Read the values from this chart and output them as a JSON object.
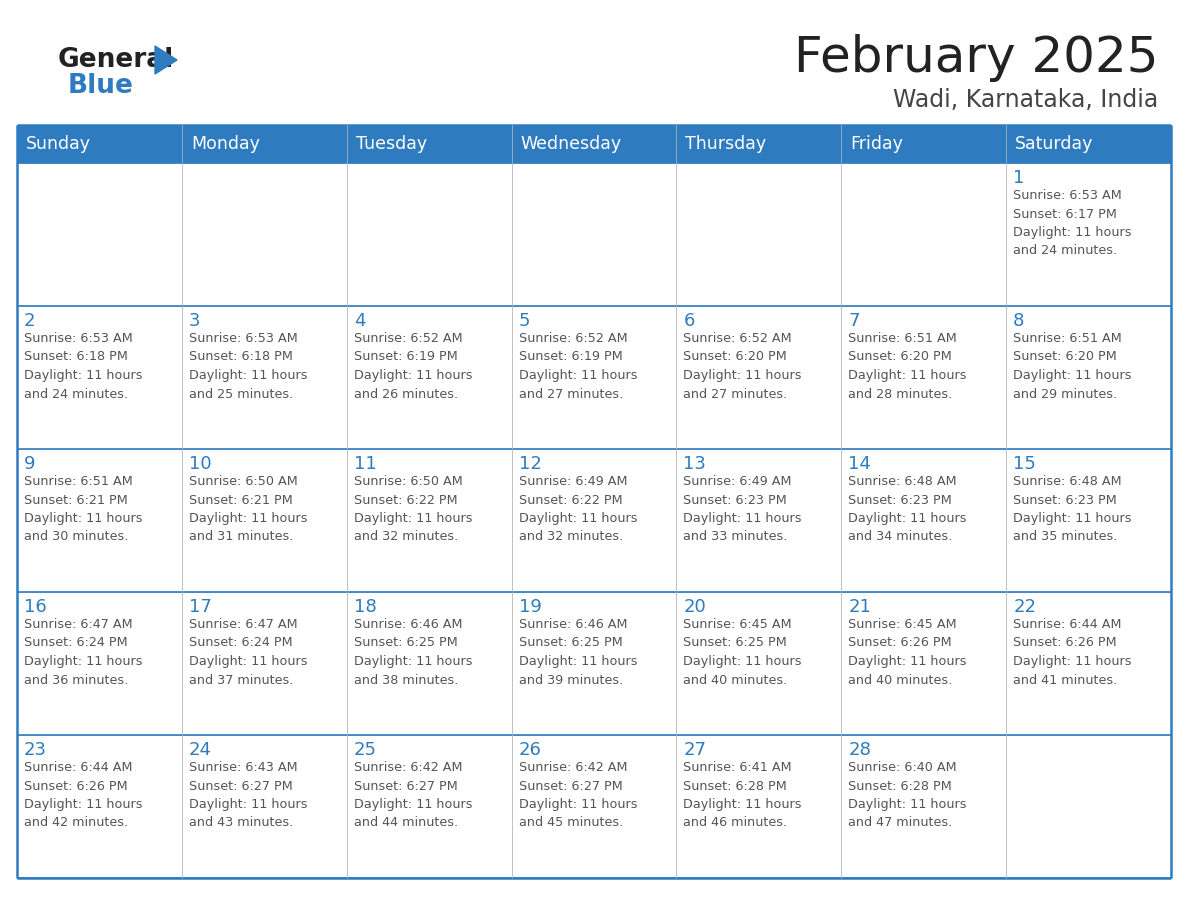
{
  "title": "February 2025",
  "subtitle": "Wadi, Karnataka, India",
  "days_of_week": [
    "Sunday",
    "Monday",
    "Tuesday",
    "Wednesday",
    "Thursday",
    "Friday",
    "Saturday"
  ],
  "header_bg": "#2E7BBF",
  "header_text_color": "#FFFFFF",
  "border_color": "#2E7BBF",
  "day_number_color": "#2E7BBF",
  "text_color": "#555555",
  "title_color": "#222222",
  "subtitle_color": "#444444",
  "logo_general_color": "#222222",
  "logo_blue_color": "#2E7BBF",
  "calendar": [
    [
      null,
      null,
      null,
      null,
      null,
      null,
      {
        "day": 1,
        "sunrise": "6:53 AM",
        "sunset": "6:17 PM",
        "daylight_line1": "Daylight: 11 hours",
        "daylight_line2": "and 24 minutes."
      }
    ],
    [
      {
        "day": 2,
        "sunrise": "6:53 AM",
        "sunset": "6:18 PM",
        "daylight_line1": "Daylight: 11 hours",
        "daylight_line2": "and 24 minutes."
      },
      {
        "day": 3,
        "sunrise": "6:53 AM",
        "sunset": "6:18 PM",
        "daylight_line1": "Daylight: 11 hours",
        "daylight_line2": "and 25 minutes."
      },
      {
        "day": 4,
        "sunrise": "6:52 AM",
        "sunset": "6:19 PM",
        "daylight_line1": "Daylight: 11 hours",
        "daylight_line2": "and 26 minutes."
      },
      {
        "day": 5,
        "sunrise": "6:52 AM",
        "sunset": "6:19 PM",
        "daylight_line1": "Daylight: 11 hours",
        "daylight_line2": "and 27 minutes."
      },
      {
        "day": 6,
        "sunrise": "6:52 AM",
        "sunset": "6:20 PM",
        "daylight_line1": "Daylight: 11 hours",
        "daylight_line2": "and 27 minutes."
      },
      {
        "day": 7,
        "sunrise": "6:51 AM",
        "sunset": "6:20 PM",
        "daylight_line1": "Daylight: 11 hours",
        "daylight_line2": "and 28 minutes."
      },
      {
        "day": 8,
        "sunrise": "6:51 AM",
        "sunset": "6:20 PM",
        "daylight_line1": "Daylight: 11 hours",
        "daylight_line2": "and 29 minutes."
      }
    ],
    [
      {
        "day": 9,
        "sunrise": "6:51 AM",
        "sunset": "6:21 PM",
        "daylight_line1": "Daylight: 11 hours",
        "daylight_line2": "and 30 minutes."
      },
      {
        "day": 10,
        "sunrise": "6:50 AM",
        "sunset": "6:21 PM",
        "daylight_line1": "Daylight: 11 hours",
        "daylight_line2": "and 31 minutes."
      },
      {
        "day": 11,
        "sunrise": "6:50 AM",
        "sunset": "6:22 PM",
        "daylight_line1": "Daylight: 11 hours",
        "daylight_line2": "and 32 minutes."
      },
      {
        "day": 12,
        "sunrise": "6:49 AM",
        "sunset": "6:22 PM",
        "daylight_line1": "Daylight: 11 hours",
        "daylight_line2": "and 32 minutes."
      },
      {
        "day": 13,
        "sunrise": "6:49 AM",
        "sunset": "6:23 PM",
        "daylight_line1": "Daylight: 11 hours",
        "daylight_line2": "and 33 minutes."
      },
      {
        "day": 14,
        "sunrise": "6:48 AM",
        "sunset": "6:23 PM",
        "daylight_line1": "Daylight: 11 hours",
        "daylight_line2": "and 34 minutes."
      },
      {
        "day": 15,
        "sunrise": "6:48 AM",
        "sunset": "6:23 PM",
        "daylight_line1": "Daylight: 11 hours",
        "daylight_line2": "and 35 minutes."
      }
    ],
    [
      {
        "day": 16,
        "sunrise": "6:47 AM",
        "sunset": "6:24 PM",
        "daylight_line1": "Daylight: 11 hours",
        "daylight_line2": "and 36 minutes."
      },
      {
        "day": 17,
        "sunrise": "6:47 AM",
        "sunset": "6:24 PM",
        "daylight_line1": "Daylight: 11 hours",
        "daylight_line2": "and 37 minutes."
      },
      {
        "day": 18,
        "sunrise": "6:46 AM",
        "sunset": "6:25 PM",
        "daylight_line1": "Daylight: 11 hours",
        "daylight_line2": "and 38 minutes."
      },
      {
        "day": 19,
        "sunrise": "6:46 AM",
        "sunset": "6:25 PM",
        "daylight_line1": "Daylight: 11 hours",
        "daylight_line2": "and 39 minutes."
      },
      {
        "day": 20,
        "sunrise": "6:45 AM",
        "sunset": "6:25 PM",
        "daylight_line1": "Daylight: 11 hours",
        "daylight_line2": "and 40 minutes."
      },
      {
        "day": 21,
        "sunrise": "6:45 AM",
        "sunset": "6:26 PM",
        "daylight_line1": "Daylight: 11 hours",
        "daylight_line2": "and 40 minutes."
      },
      {
        "day": 22,
        "sunrise": "6:44 AM",
        "sunset": "6:26 PM",
        "daylight_line1": "Daylight: 11 hours",
        "daylight_line2": "and 41 minutes."
      }
    ],
    [
      {
        "day": 23,
        "sunrise": "6:44 AM",
        "sunset": "6:26 PM",
        "daylight_line1": "Daylight: 11 hours",
        "daylight_line2": "and 42 minutes."
      },
      {
        "day": 24,
        "sunrise": "6:43 AM",
        "sunset": "6:27 PM",
        "daylight_line1": "Daylight: 11 hours",
        "daylight_line2": "and 43 minutes."
      },
      {
        "day": 25,
        "sunrise": "6:42 AM",
        "sunset": "6:27 PM",
        "daylight_line1": "Daylight: 11 hours",
        "daylight_line2": "and 44 minutes."
      },
      {
        "day": 26,
        "sunrise": "6:42 AM",
        "sunset": "6:27 PM",
        "daylight_line1": "Daylight: 11 hours",
        "daylight_line2": "and 45 minutes."
      },
      {
        "day": 27,
        "sunrise": "6:41 AM",
        "sunset": "6:28 PM",
        "daylight_line1": "Daylight: 11 hours",
        "daylight_line2": "and 46 minutes."
      },
      {
        "day": 28,
        "sunrise": "6:40 AM",
        "sunset": "6:28 PM",
        "daylight_line1": "Daylight: 11 hours",
        "daylight_line2": "and 47 minutes."
      },
      null
    ]
  ]
}
